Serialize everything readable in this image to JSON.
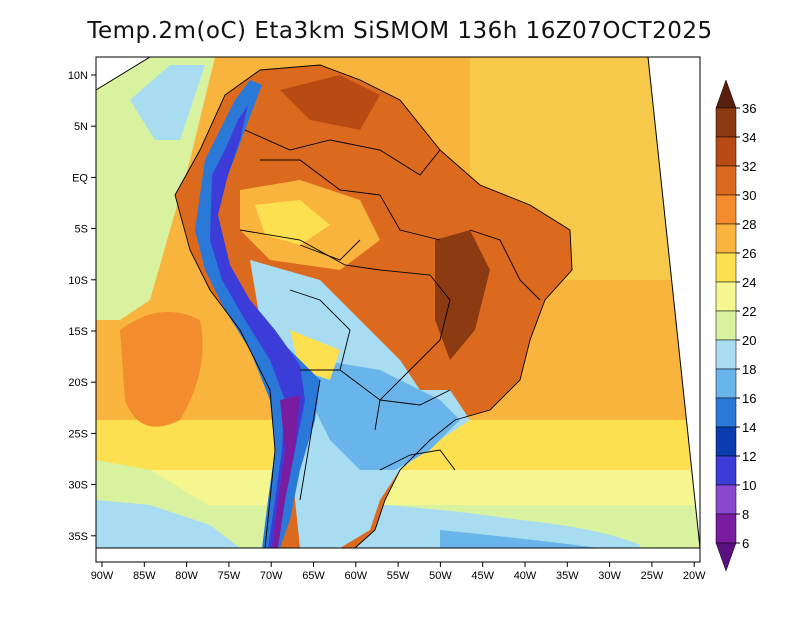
{
  "title": "Temp.2m(oC) Eta3km SiSMOM 136h 16Z07OCT2025",
  "axes": {
    "lon_labels": [
      "90W",
      "85W",
      "80W",
      "75W",
      "70W",
      "65W",
      "60W",
      "55W",
      "50W",
      "45W",
      "40W",
      "35W",
      "30W",
      "25W",
      "20W"
    ],
    "lat_labels": [
      "10N",
      "5N",
      "EQ",
      "5S",
      "10S",
      "15S",
      "20S",
      "25S",
      "30S",
      "35S"
    ]
  },
  "colorbar": {
    "levels": [
      "36",
      "34",
      "32",
      "30",
      "28",
      "26",
      "24",
      "22",
      "20",
      "18",
      "16",
      "14",
      "12",
      "10",
      "8",
      "6"
    ],
    "colors": [
      "#6b2a10",
      "#8c3a12",
      "#b84a14",
      "#dc6a1e",
      "#f28c2c",
      "#f8b43c",
      "#fde050",
      "#f6f690",
      "#d8f2a0",
      "#a8dcf0",
      "#6ab4ec",
      "#2a78d8",
      "#0a3cb0",
      "#3c3cd8",
      "#8a48d0",
      "#7a1ca0",
      "#5a1080"
    ],
    "top_arrow_color": "#5a1f0c",
    "bottom_arrow_color": "#5a1080"
  },
  "map": {
    "ocean_color": "#f8b43c",
    "land_color": "#dc6a1e"
  }
}
